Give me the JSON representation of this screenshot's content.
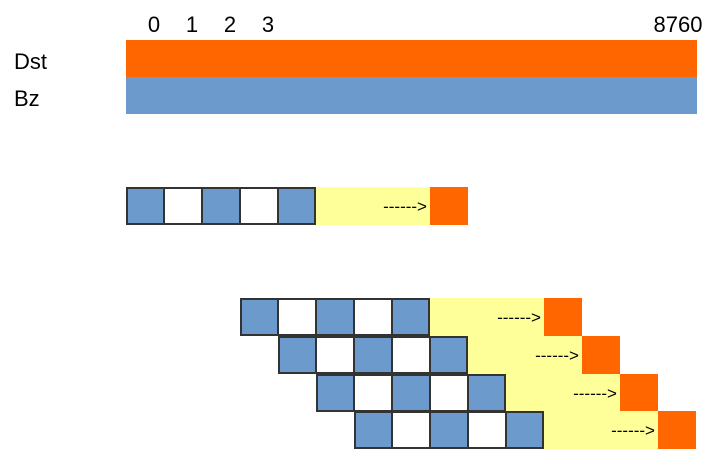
{
  "timeline": {
    "ticks": [
      "0",
      "1",
      "2",
      "3",
      "8760"
    ],
    "rows": [
      {
        "label": "Dst",
        "color": "#ff6600"
      },
      {
        "label": "Bz",
        "color": "#6d9acd"
      }
    ]
  },
  "windows": {
    "arrow_text": "------>",
    "cell_colors": [
      "#6d9acd",
      "#ffffff",
      "#6d9acd",
      "#ffffff",
      "#6d9acd"
    ],
    "gap_color": "#ffff99",
    "target_color": "#ff6600",
    "border_color": "#333333"
  }
}
